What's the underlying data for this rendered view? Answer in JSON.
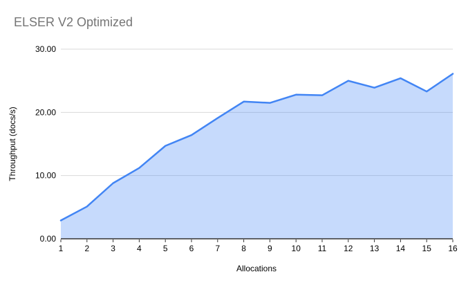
{
  "header": {
    "title": "ELSER V2 Optimized",
    "title_color": "#757575"
  },
  "chart_data": {
    "type": "area",
    "title": "ELSER V2 Optimized",
    "xlabel": "Allocations",
    "ylabel": "Throughput (docs/s)",
    "x": [
      1,
      2,
      3,
      4,
      5,
      6,
      7,
      8,
      9,
      10,
      11,
      12,
      13,
      14,
      15,
      16
    ],
    "x_labels": [
      "1",
      "2",
      "3",
      "4",
      "5",
      "6",
      "7",
      "8",
      "9",
      "10",
      "11",
      "12",
      "13",
      "14",
      "15",
      "16"
    ],
    "values": [
      2.9,
      5.1,
      8.8,
      11.2,
      14.7,
      16.4,
      19.1,
      21.7,
      21.5,
      22.8,
      22.7,
      25.0,
      23.9,
      25.4,
      23.3,
      26.1
    ],
    "ylim": [
      0,
      30
    ],
    "yticks": [
      {
        "value": 0,
        "label": "0.00"
      },
      {
        "value": 10,
        "label": "10.00"
      },
      {
        "value": 20,
        "label": "20.00"
      },
      {
        "value": 30,
        "label": "30.00"
      }
    ],
    "grid": true,
    "legend": "none",
    "colors": {
      "line": "#4285f4",
      "fill": "#4285f4",
      "fill_opacity": 0.3,
      "gridline": "#d9d9d9",
      "axis_line": "#333333",
      "tick_mark": "#333333",
      "tick_label": "#000000"
    }
  }
}
